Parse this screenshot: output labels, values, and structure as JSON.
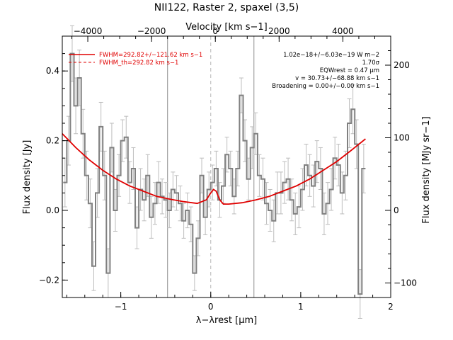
{
  "chart_data": {
    "type": "line",
    "title": "NII122, Raster 2, spaxel (3,5)",
    "xlabel": "λ−λrest [µm]",
    "ylabel": "Flux density [Jy]",
    "top_xlabel": "Velocity [km s−1]",
    "right_ylabel": "Flux density [MJy sr−1]",
    "xlim": [
      -1.65,
      2.0
    ],
    "ylim": [
      -0.25,
      0.5
    ],
    "right_ylim": [
      -120,
      240
    ],
    "top_xlim": [
      -4800,
      5500
    ],
    "x_ticks": [
      -1,
      0,
      1,
      2
    ],
    "x_tick_labels": [
      "−1",
      "0",
      "1",
      "2"
    ],
    "y_ticks": [
      -0.2,
      0.0,
      0.2,
      0.4
    ],
    "y_tick_labels": [
      "−0.2",
      "0.0",
      "0.2",
      "0.4"
    ],
    "top_ticks": [
      -4000,
      -2000,
      0,
      2000,
      4000
    ],
    "top_tick_labels": [
      "−4000",
      "−2000",
      "0",
      "2000",
      "4000"
    ],
    "right_ticks": [
      -100,
      0,
      100,
      200
    ],
    "right_tick_labels": [
      "−100",
      "0",
      "100",
      "200"
    ],
    "vertical_lines": [
      -0.48,
      0.48
    ],
    "center_line": 0.0,
    "legend": [
      {
        "label": "FWHM=292.82+/−121.62 km s−1",
        "style": "solid",
        "color": "#e00000"
      },
      {
        "label": "FWHM_th=292.82 km s−1",
        "style": "dashed",
        "color": "#e00000"
      }
    ],
    "annotations": [
      "1.02e−18+/−6.03e−19 W m−2",
      "1.70σ",
      "EQWrest = 0.47 µm",
      "v = 30.73+/−68.88 km s−1",
      "Broadening = 0.00+/−0.00 km s−1"
    ],
    "series": [
      {
        "name": "data",
        "color": "#808080",
        "x": [
          -1.62,
          -1.58,
          -1.54,
          -1.5,
          -1.46,
          -1.42,
          -1.38,
          -1.34,
          -1.3,
          -1.26,
          -1.22,
          -1.18,
          -1.14,
          -1.1,
          -1.06,
          -1.02,
          -0.98,
          -0.94,
          -0.9,
          -0.86,
          -0.82,
          -0.78,
          -0.74,
          -0.7,
          -0.66,
          -0.62,
          -0.58,
          -0.54,
          -0.5,
          -0.46,
          -0.42,
          -0.38,
          -0.34,
          -0.3,
          -0.26,
          -0.22,
          -0.18,
          -0.14,
          -0.1,
          -0.06,
          -0.02,
          0.02,
          0.06,
          0.1,
          0.14,
          0.18,
          0.22,
          0.26,
          0.3,
          0.34,
          0.38,
          0.42,
          0.46,
          0.5,
          0.54,
          0.58,
          0.62,
          0.66,
          0.7,
          0.74,
          0.78,
          0.82,
          0.86,
          0.9,
          0.94,
          0.98,
          1.02,
          1.06,
          1.1,
          1.14,
          1.18,
          1.22,
          1.26,
          1.3,
          1.34,
          1.38,
          1.42,
          1.46,
          1.5,
          1.54,
          1.58,
          1.62,
          1.66,
          1.7
        ],
        "y": [
          0.08,
          0.2,
          0.45,
          0.3,
          0.38,
          0.22,
          0.1,
          0.02,
          -0.16,
          0.05,
          0.24,
          0.1,
          -0.18,
          0.18,
          0.0,
          0.1,
          0.2,
          0.21,
          0.08,
          0.12,
          -0.05,
          0.06,
          0.03,
          0.1,
          -0.02,
          0.02,
          0.08,
          0.04,
          0.03,
          0.0,
          0.06,
          0.05,
          0.02,
          -0.03,
          0.0,
          -0.04,
          -0.18,
          -0.08,
          0.1,
          -0.02,
          0.06,
          0.08,
          0.12,
          0.03,
          0.07,
          0.16,
          0.12,
          0.04,
          0.12,
          0.33,
          0.2,
          0.09,
          0.18,
          0.22,
          0.1,
          0.09,
          0.02,
          0.0,
          -0.03,
          0.05,
          0.05,
          0.08,
          0.09,
          0.03,
          -0.01,
          0.01,
          0.06,
          0.13,
          0.1,
          0.07,
          0.14,
          0.12,
          -0.01,
          0.02,
          0.06,
          0.15,
          0.13,
          0.05,
          0.1,
          0.25,
          0.29,
          0.19,
          -0.24,
          0.12
        ],
        "err": [
          0.07,
          0.07,
          0.08,
          0.08,
          0.08,
          0.07,
          0.07,
          0.07,
          0.07,
          0.07,
          0.07,
          0.07,
          0.07,
          0.07,
          0.06,
          0.06,
          0.06,
          0.06,
          0.06,
          0.06,
          0.06,
          0.06,
          0.06,
          0.06,
          0.06,
          0.06,
          0.06,
          0.05,
          0.05,
          0.05,
          0.05,
          0.05,
          0.05,
          0.05,
          0.05,
          0.05,
          0.05,
          0.05,
          0.05,
          0.05,
          0.05,
          0.05,
          0.05,
          0.05,
          0.05,
          0.05,
          0.05,
          0.05,
          0.05,
          0.05,
          0.06,
          0.06,
          0.06,
          0.06,
          0.06,
          0.06,
          0.06,
          0.06,
          0.06,
          0.06,
          0.06,
          0.06,
          0.06,
          0.06,
          0.06,
          0.06,
          0.06,
          0.06,
          0.06,
          0.06,
          0.06,
          0.06,
          0.06,
          0.06,
          0.06,
          0.06,
          0.06,
          0.06,
          0.07,
          0.07,
          0.07,
          0.07,
          0.07,
          0.07
        ]
      },
      {
        "name": "fit",
        "color": "#e00000",
        "x": [
          -1.65,
          -1.5,
          -1.35,
          -1.2,
          -1.05,
          -0.9,
          -0.75,
          -0.6,
          -0.45,
          -0.3,
          -0.15,
          -0.05,
          0.0,
          0.03,
          0.06,
          0.1,
          0.14,
          0.2,
          0.35,
          0.5,
          0.65,
          0.8,
          0.95,
          1.1,
          1.25,
          1.4,
          1.55,
          1.72
        ],
        "y": [
          0.22,
          0.18,
          0.145,
          0.115,
          0.09,
          0.07,
          0.055,
          0.04,
          0.032,
          0.025,
          0.02,
          0.03,
          0.05,
          0.06,
          0.055,
          0.03,
          0.018,
          0.018,
          0.022,
          0.03,
          0.04,
          0.055,
          0.07,
          0.09,
          0.115,
          0.14,
          0.17,
          0.205
        ]
      }
    ]
  }
}
